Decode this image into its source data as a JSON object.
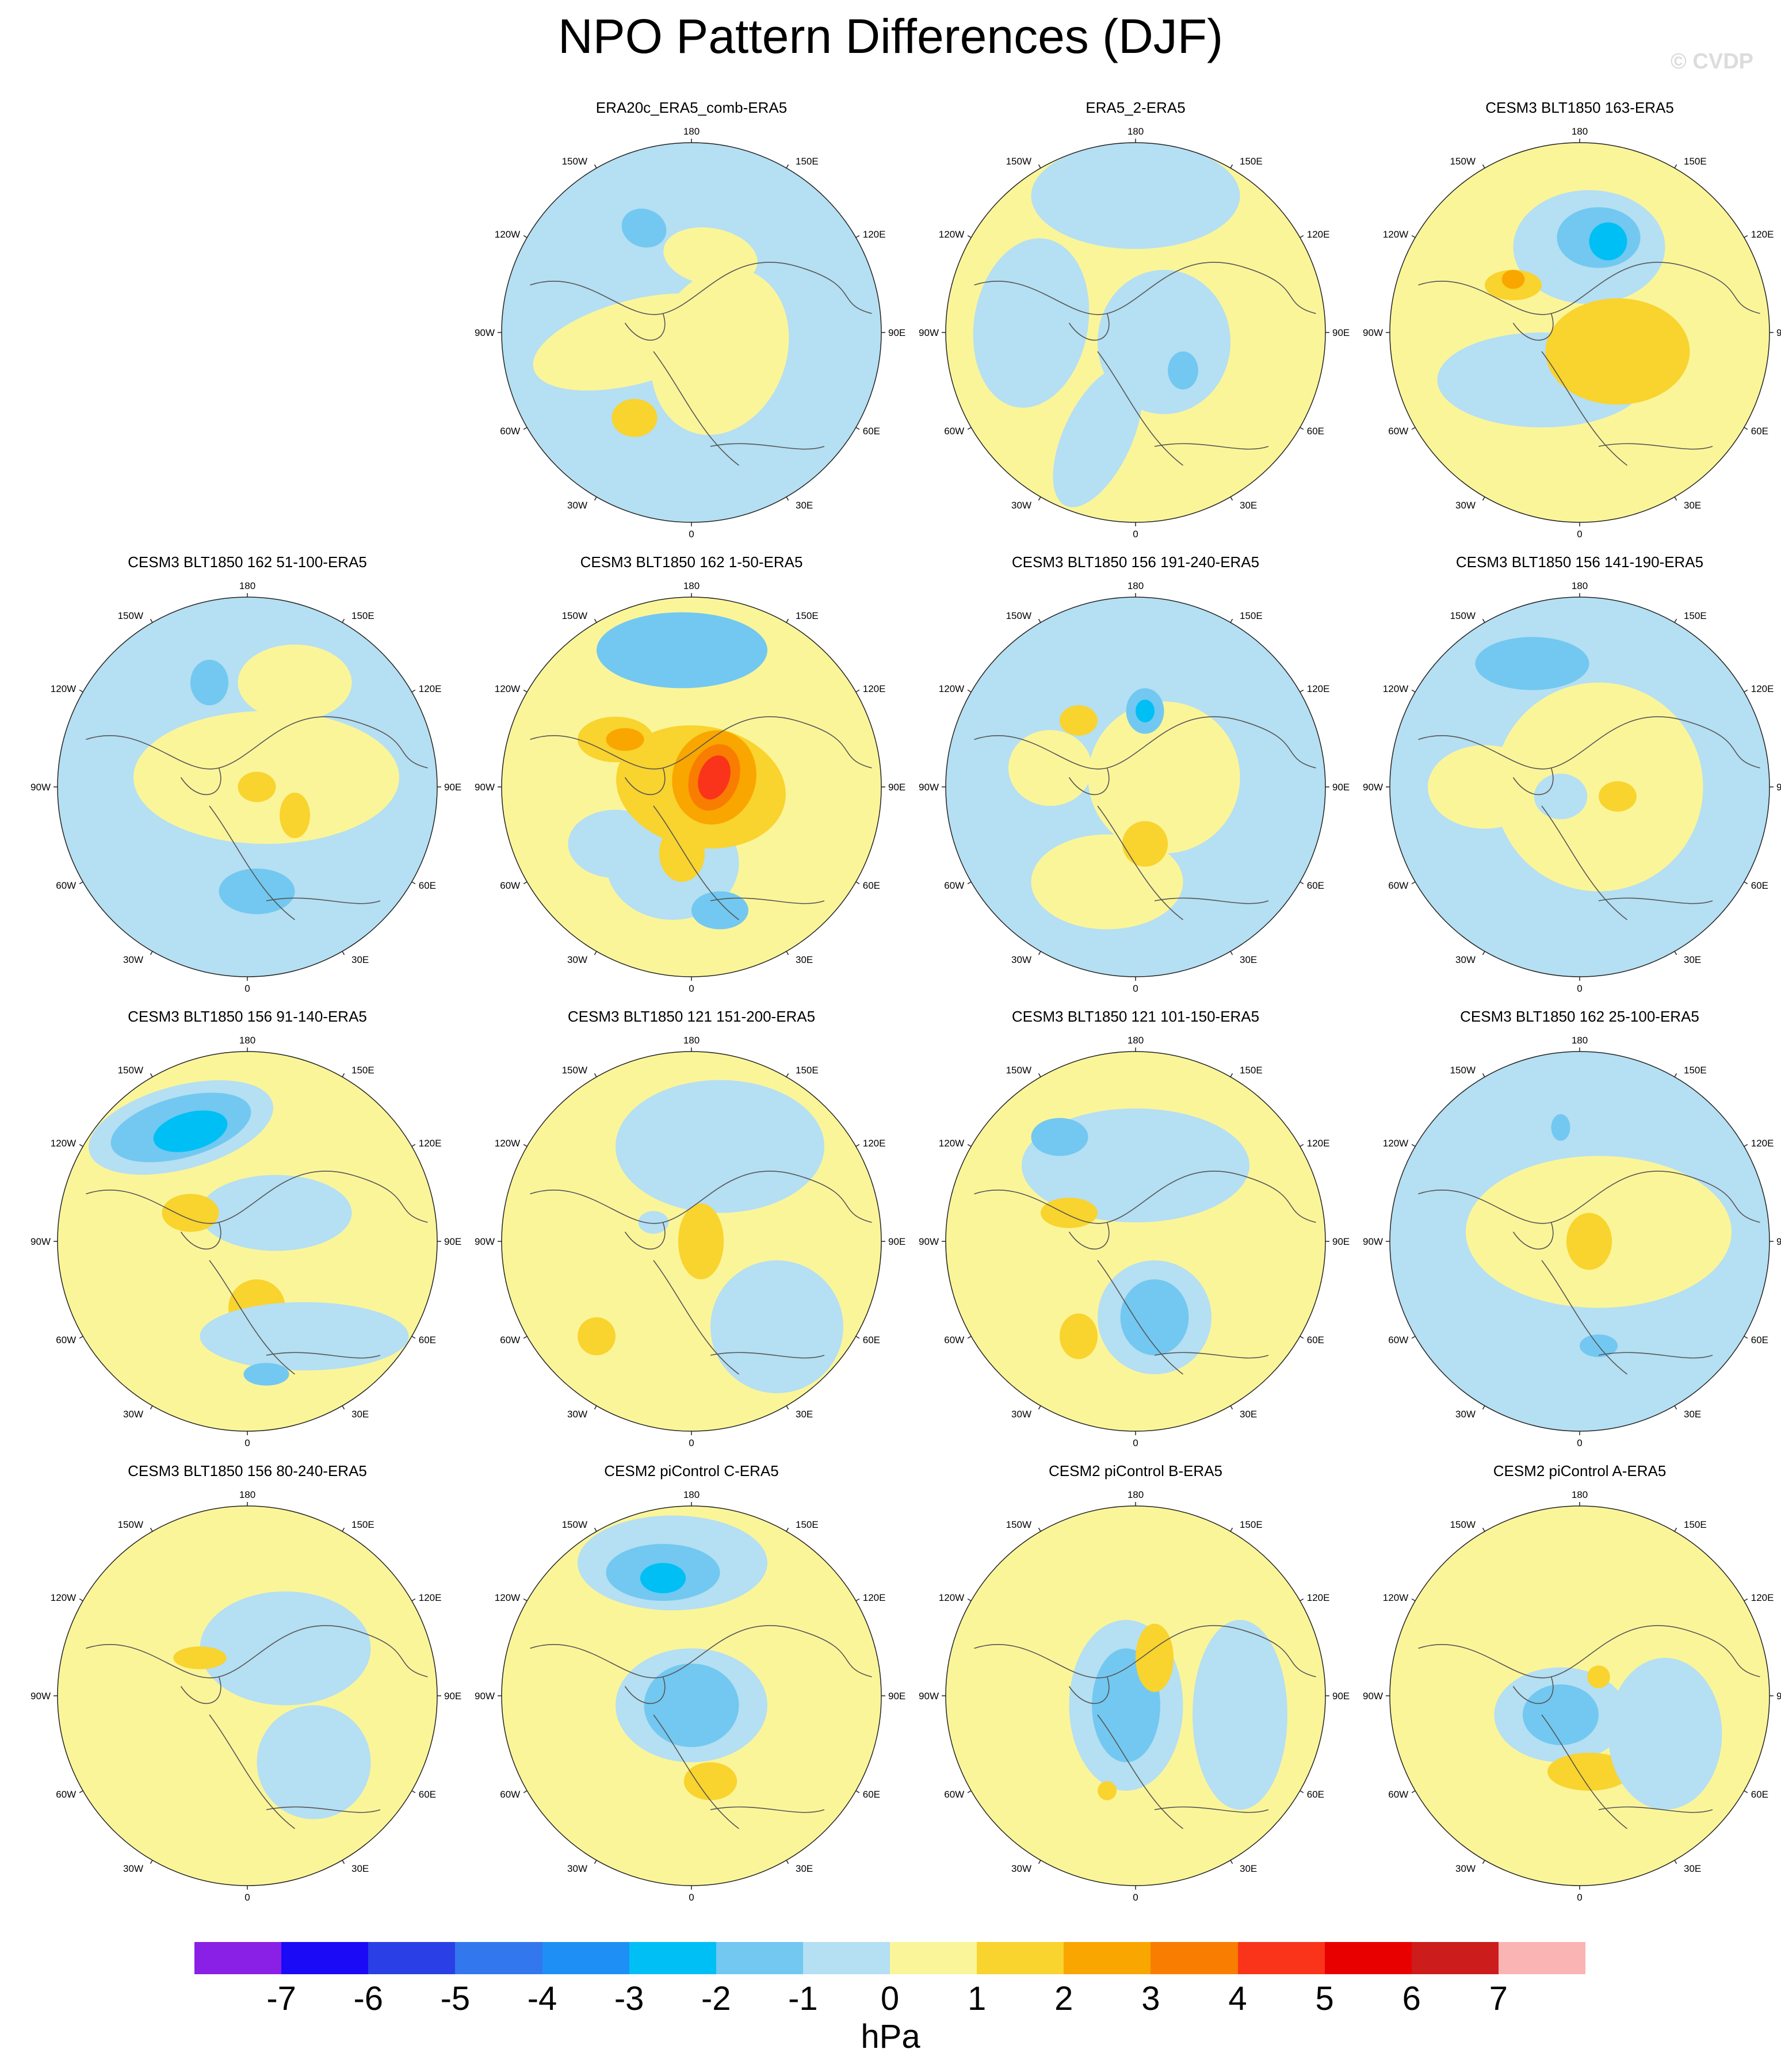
{
  "title": "NPO Pattern Differences (DJF)",
  "watermark": "© CVDP",
  "longitude_labels": {
    "top": "180",
    "bottom": "0",
    "left_top": "150W",
    "right_top": "150E",
    "left_upper": "120W",
    "right_upper": "120E",
    "left_mid": "90W",
    "right_mid": "90E",
    "left_lower": "60W",
    "right_lower": "60E",
    "left_bottom": "30W",
    "right_bottom": "30E"
  },
  "panels": [
    {
      "title": "ERA20c_ERA5_comb-ERA5",
      "row": 0,
      "col": 1
    },
    {
      "title": "ERA5_2-ERA5",
      "row": 0,
      "col": 2
    },
    {
      "title": "CESM3 BLT1850 163-ERA5",
      "row": 0,
      "col": 3
    },
    {
      "title": "CESM3 BLT1850 162 51-100-ERA5",
      "row": 1,
      "col": 0
    },
    {
      "title": "CESM3 BLT1850 162 1-50-ERA5",
      "row": 1,
      "col": 1
    },
    {
      "title": "CESM3 BLT1850 156 191-240-ERA5",
      "row": 1,
      "col": 2
    },
    {
      "title": "CESM3 BLT1850 156 141-190-ERA5",
      "row": 1,
      "col": 3
    },
    {
      "title": "CESM3 BLT1850 156 91-140-ERA5",
      "row": 2,
      "col": 0
    },
    {
      "title": "CESM3 BLT1850 121 151-200-ERA5",
      "row": 2,
      "col": 1
    },
    {
      "title": "CESM3 BLT1850 121 101-150-ERA5",
      "row": 2,
      "col": 2
    },
    {
      "title": "CESM3 BLT1850 162 25-100-ERA5",
      "row": 2,
      "col": 3
    },
    {
      "title": "CESM3 BLT1850 156 80-240-ERA5",
      "row": 3,
      "col": 0
    },
    {
      "title": "CESM2 piControl C-ERA5",
      "row": 3,
      "col": 1
    },
    {
      "title": "CESM2 piControl B-ERA5",
      "row": 3,
      "col": 2
    },
    {
      "title": "CESM2 piControl A-ERA5",
      "row": 3,
      "col": 3
    }
  ],
  "colorbar": {
    "colors": [
      "#8a1fe6",
      "#1a0af5",
      "#2a40e6",
      "#3377ee",
      "#1e90f5",
      "#00bff5",
      "#72c8f0",
      "#b5dff2",
      "#fbf59a",
      "#f9d32e",
      "#f9a600",
      "#f97d00",
      "#f9341a",
      "#e80000",
      "#cc1c1c",
      "#fab4b4"
    ],
    "labels": [
      "-7",
      "-6",
      "-5",
      "-4",
      "-3",
      "-2",
      "-1",
      "0",
      "1",
      "2",
      "3",
      "4",
      "5",
      "6",
      "7"
    ],
    "unit": "hPa"
  }
}
